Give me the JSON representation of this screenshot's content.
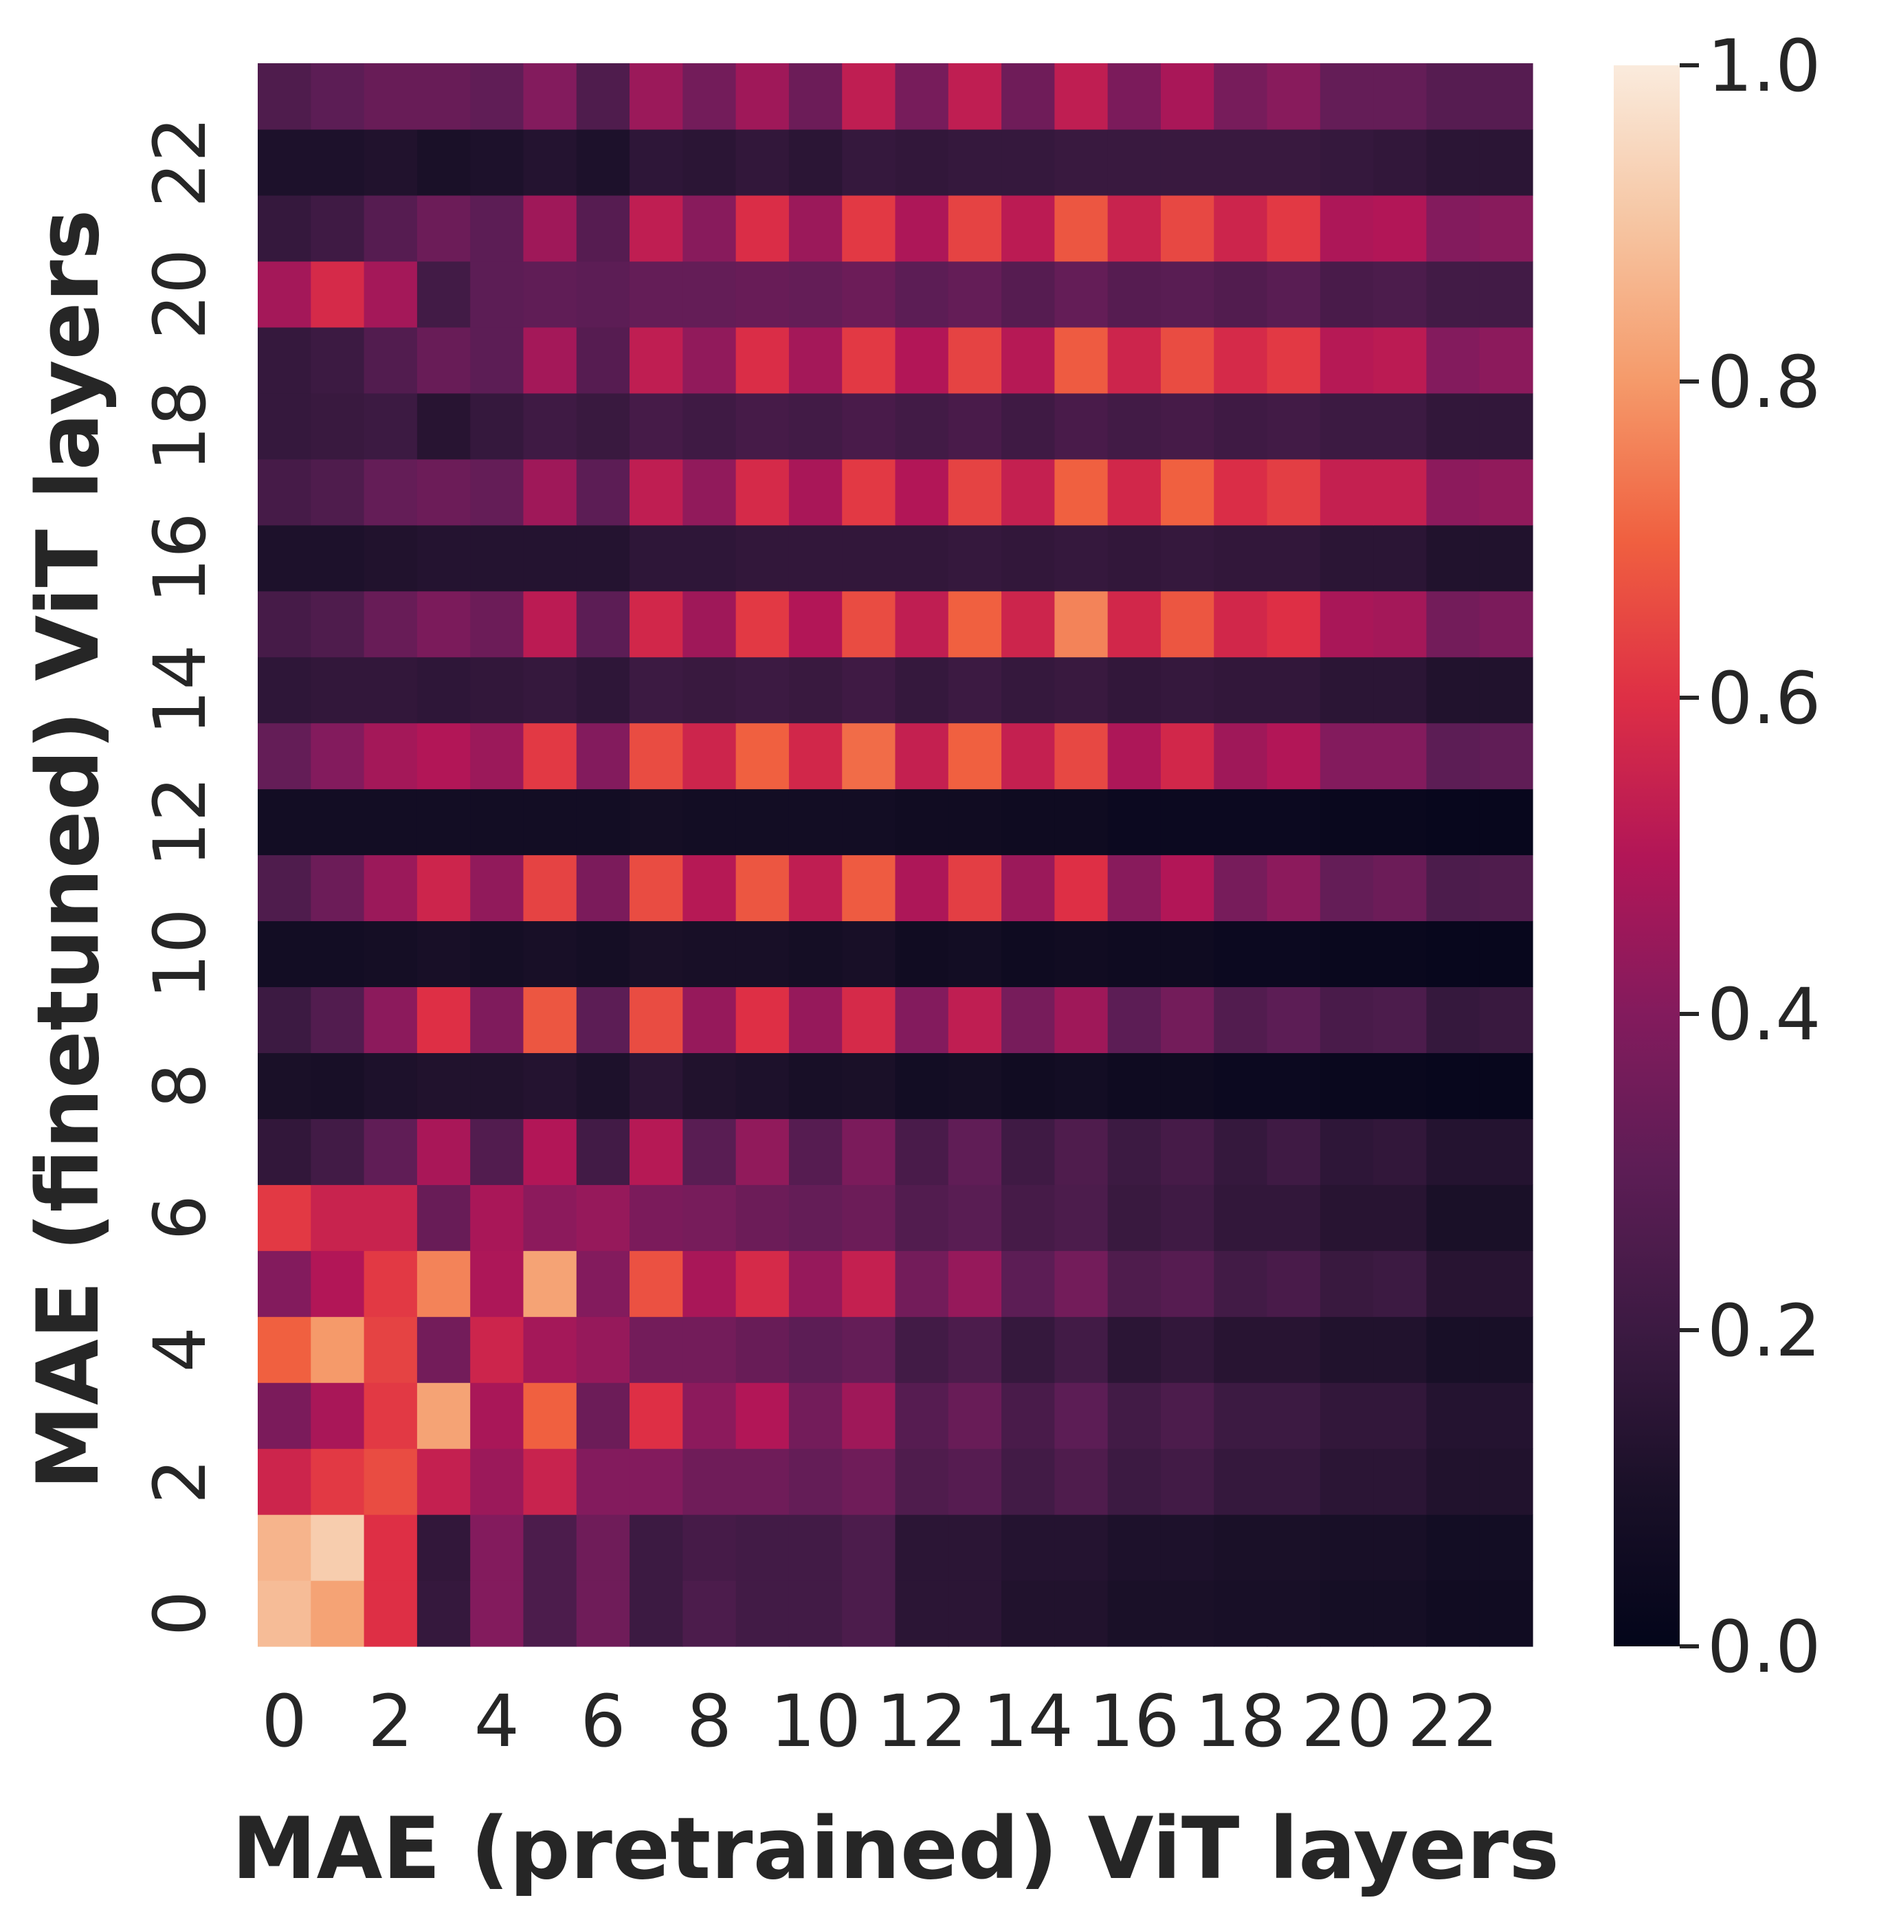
{
  "chart_data": {
    "type": "heatmap",
    "xlabel": "MAE (pretrained) ViT layers",
    "ylabel": "MAE (finetuned) ViT layers",
    "x_tick_labels": [
      "0",
      "2",
      "4",
      "6",
      "8",
      "10",
      "12",
      "14",
      "16",
      "18",
      "20",
      "22"
    ],
    "y_tick_labels": [
      "0",
      "2",
      "4",
      "6",
      "8",
      "10",
      "12",
      "14",
      "16",
      "18",
      "20",
      "22"
    ],
    "n_rows": 24,
    "n_cols": 24,
    "row_order": "bottom-to-top (row 0 = layer 0 at bottom)",
    "colorbar": {
      "min": 0.0,
      "max": 1.0,
      "ticks": [
        "0.0",
        "0.2",
        "0.4",
        "0.6",
        "0.8",
        "1.0"
      ],
      "colormap": "rocket"
    },
    "values": [
      [
        0.88,
        0.82,
        0.6,
        0.18,
        0.4,
        0.25,
        0.35,
        0.2,
        0.25,
        0.22,
        0.22,
        0.25,
        0.15,
        0.15,
        0.12,
        0.12,
        0.1,
        0.1,
        0.09,
        0.09,
        0.08,
        0.08,
        0.06,
        0.06
      ],
      [
        0.86,
        0.92,
        0.6,
        0.17,
        0.4,
        0.25,
        0.35,
        0.2,
        0.23,
        0.22,
        0.22,
        0.25,
        0.15,
        0.15,
        0.13,
        0.13,
        0.11,
        0.11,
        0.1,
        0.1,
        0.09,
        0.09,
        0.07,
        0.07
      ],
      [
        0.56,
        0.62,
        0.66,
        0.54,
        0.45,
        0.55,
        0.4,
        0.4,
        0.35,
        0.35,
        0.32,
        0.35,
        0.26,
        0.28,
        0.22,
        0.26,
        0.2,
        0.22,
        0.18,
        0.18,
        0.15,
        0.15,
        0.12,
        0.12
      ],
      [
        0.38,
        0.48,
        0.62,
        0.82,
        0.48,
        0.7,
        0.34,
        0.6,
        0.42,
        0.5,
        0.36,
        0.46,
        0.28,
        0.33,
        0.24,
        0.3,
        0.22,
        0.25,
        0.2,
        0.2,
        0.17,
        0.17,
        0.13,
        0.13
      ],
      [
        0.7,
        0.8,
        0.64,
        0.36,
        0.56,
        0.47,
        0.44,
        0.36,
        0.36,
        0.33,
        0.3,
        0.32,
        0.22,
        0.25,
        0.18,
        0.22,
        0.15,
        0.17,
        0.14,
        0.14,
        0.12,
        0.12,
        0.09,
        0.09
      ],
      [
        0.4,
        0.5,
        0.62,
        0.76,
        0.49,
        0.82,
        0.4,
        0.67,
        0.48,
        0.58,
        0.44,
        0.54,
        0.36,
        0.44,
        0.3,
        0.36,
        0.26,
        0.28,
        0.22,
        0.24,
        0.19,
        0.2,
        0.14,
        0.14
      ],
      [
        0.62,
        0.55,
        0.55,
        0.33,
        0.48,
        0.42,
        0.44,
        0.38,
        0.37,
        0.34,
        0.32,
        0.34,
        0.27,
        0.29,
        0.23,
        0.25,
        0.19,
        0.21,
        0.17,
        0.17,
        0.14,
        0.14,
        0.1,
        0.1
      ],
      [
        0.17,
        0.22,
        0.31,
        0.48,
        0.27,
        0.5,
        0.22,
        0.51,
        0.29,
        0.43,
        0.28,
        0.38,
        0.24,
        0.31,
        0.21,
        0.26,
        0.2,
        0.23,
        0.18,
        0.21,
        0.16,
        0.17,
        0.13,
        0.13
      ],
      [
        0.1,
        0.09,
        0.11,
        0.12,
        0.12,
        0.13,
        0.11,
        0.15,
        0.12,
        0.11,
        0.09,
        0.1,
        0.07,
        0.08,
        0.06,
        0.07,
        0.05,
        0.05,
        0.04,
        0.04,
        0.03,
        0.03,
        0.02,
        0.02
      ],
      [
        0.2,
        0.27,
        0.42,
        0.6,
        0.39,
        0.68,
        0.3,
        0.66,
        0.44,
        0.6,
        0.44,
        0.58,
        0.4,
        0.53,
        0.37,
        0.46,
        0.3,
        0.36,
        0.27,
        0.3,
        0.24,
        0.25,
        0.18,
        0.19
      ],
      [
        0.07,
        0.07,
        0.08,
        0.09,
        0.08,
        0.09,
        0.08,
        0.1,
        0.09,
        0.09,
        0.08,
        0.09,
        0.06,
        0.07,
        0.05,
        0.06,
        0.05,
        0.05,
        0.04,
        0.04,
        0.03,
        0.03,
        0.02,
        0.02
      ],
      [
        0.26,
        0.34,
        0.45,
        0.56,
        0.43,
        0.64,
        0.38,
        0.66,
        0.51,
        0.68,
        0.53,
        0.69,
        0.49,
        0.63,
        0.45,
        0.6,
        0.41,
        0.5,
        0.37,
        0.42,
        0.32,
        0.34,
        0.25,
        0.26
      ],
      [
        0.07,
        0.07,
        0.07,
        0.07,
        0.07,
        0.07,
        0.07,
        0.08,
        0.07,
        0.07,
        0.07,
        0.07,
        0.06,
        0.06,
        0.05,
        0.05,
        0.04,
        0.04,
        0.04,
        0.04,
        0.03,
        0.03,
        0.02,
        0.02
      ],
      [
        0.32,
        0.4,
        0.47,
        0.5,
        0.45,
        0.62,
        0.4,
        0.66,
        0.56,
        0.7,
        0.57,
        0.72,
        0.54,
        0.7,
        0.54,
        0.65,
        0.49,
        0.57,
        0.46,
        0.5,
        0.4,
        0.4,
        0.3,
        0.31
      ],
      [
        0.16,
        0.17,
        0.17,
        0.16,
        0.17,
        0.18,
        0.16,
        0.2,
        0.19,
        0.2,
        0.19,
        0.21,
        0.18,
        0.2,
        0.18,
        0.19,
        0.17,
        0.18,
        0.17,
        0.17,
        0.15,
        0.15,
        0.12,
        0.12
      ],
      [
        0.23,
        0.26,
        0.33,
        0.38,
        0.34,
        0.52,
        0.3,
        0.57,
        0.46,
        0.62,
        0.5,
        0.66,
        0.53,
        0.7,
        0.56,
        0.76,
        0.57,
        0.68,
        0.57,
        0.6,
        0.48,
        0.47,
        0.36,
        0.38
      ],
      [
        0.11,
        0.11,
        0.12,
        0.13,
        0.13,
        0.13,
        0.13,
        0.16,
        0.16,
        0.17,
        0.17,
        0.17,
        0.17,
        0.18,
        0.17,
        0.18,
        0.17,
        0.18,
        0.17,
        0.17,
        0.15,
        0.15,
        0.12,
        0.12
      ],
      [
        0.23,
        0.26,
        0.32,
        0.34,
        0.32,
        0.46,
        0.3,
        0.53,
        0.43,
        0.58,
        0.48,
        0.62,
        0.5,
        0.64,
        0.54,
        0.7,
        0.57,
        0.7,
        0.59,
        0.63,
        0.54,
        0.54,
        0.42,
        0.43
      ],
      [
        0.18,
        0.19,
        0.2,
        0.14,
        0.18,
        0.21,
        0.19,
        0.23,
        0.21,
        0.23,
        0.22,
        0.24,
        0.22,
        0.24,
        0.21,
        0.24,
        0.22,
        0.23,
        0.21,
        0.22,
        0.2,
        0.2,
        0.17,
        0.17
      ],
      [
        0.18,
        0.2,
        0.27,
        0.33,
        0.3,
        0.47,
        0.28,
        0.53,
        0.43,
        0.59,
        0.47,
        0.62,
        0.5,
        0.64,
        0.51,
        0.69,
        0.56,
        0.66,
        0.58,
        0.62,
        0.51,
        0.52,
        0.4,
        0.42
      ],
      [
        0.47,
        0.58,
        0.47,
        0.22,
        0.3,
        0.31,
        0.3,
        0.32,
        0.32,
        0.33,
        0.32,
        0.34,
        0.3,
        0.32,
        0.28,
        0.32,
        0.28,
        0.29,
        0.27,
        0.29,
        0.24,
        0.25,
        0.22,
        0.22
      ],
      [
        0.18,
        0.21,
        0.28,
        0.34,
        0.3,
        0.46,
        0.28,
        0.53,
        0.41,
        0.59,
        0.45,
        0.62,
        0.49,
        0.64,
        0.52,
        0.68,
        0.55,
        0.65,
        0.56,
        0.62,
        0.49,
        0.5,
        0.4,
        0.41
      ],
      [
        0.11,
        0.11,
        0.12,
        0.1,
        0.11,
        0.13,
        0.11,
        0.16,
        0.15,
        0.17,
        0.15,
        0.18,
        0.17,
        0.18,
        0.18,
        0.19,
        0.19,
        0.19,
        0.19,
        0.19,
        0.18,
        0.17,
        0.15,
        0.15
      ],
      [
        0.26,
        0.3,
        0.33,
        0.33,
        0.31,
        0.4,
        0.26,
        0.45,
        0.36,
        0.46,
        0.34,
        0.53,
        0.37,
        0.53,
        0.35,
        0.53,
        0.38,
        0.48,
        0.37,
        0.41,
        0.32,
        0.32,
        0.28,
        0.28
      ]
    ]
  }
}
